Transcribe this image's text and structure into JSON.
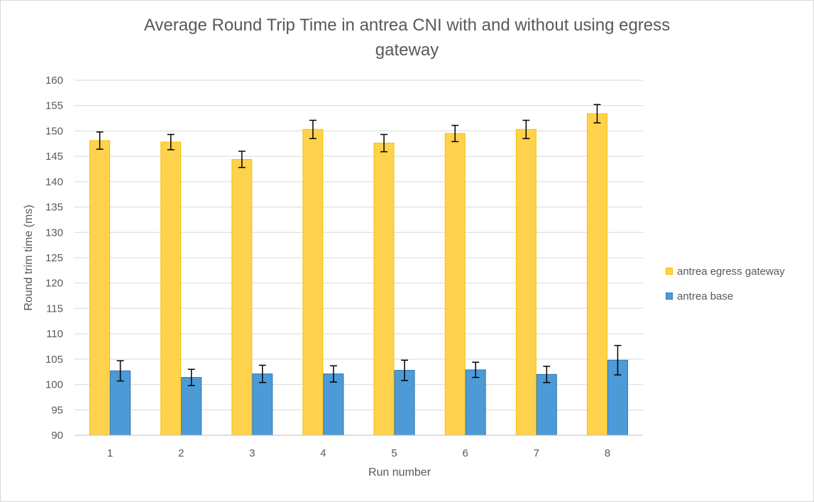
{
  "chart_data": {
    "type": "bar",
    "title": "Average Round Trip Time in antrea CNI with and without using egress gateway",
    "title_lines": [
      "Average Round Trip Time in antrea CNI with and without using egress",
      "gateway"
    ],
    "xlabel": "Run number",
    "ylabel": "Round trim time (ms)",
    "ylim": [
      90,
      160
    ],
    "yticks": [
      "90",
      "95",
      "100",
      "105",
      "110",
      "115",
      "120",
      "125",
      "130",
      "135",
      "140",
      "145",
      "150",
      "155",
      "160"
    ],
    "categories": [
      "1",
      "2",
      "3",
      "4",
      "5",
      "6",
      "7",
      "8"
    ],
    "series": [
      {
        "name": "antrea egress gateway",
        "color": "#FFD24D",
        "edge_color": "#F5C000",
        "values": [
          148.1,
          147.8,
          144.4,
          150.3,
          147.6,
          149.5,
          150.3,
          153.4
        ],
        "error": [
          1.7,
          1.5,
          1.6,
          1.8,
          1.7,
          1.6,
          1.8,
          1.8
        ]
      },
      {
        "name": "antrea base",
        "color": "#4D9BD6",
        "edge_color": "#2E75B6",
        "values": [
          102.7,
          101.4,
          102.1,
          102.1,
          102.8,
          102.9,
          102.0,
          104.8
        ],
        "error": [
          2.0,
          1.6,
          1.7,
          1.6,
          2.0,
          1.5,
          1.6,
          2.9
        ]
      }
    ],
    "grid": true,
    "legend_position": "right",
    "gridline_color": "#D9D9D9",
    "axis_color": "#BFBFBF",
    "text_color": "#595959",
    "errorbar_color": "#000000"
  }
}
